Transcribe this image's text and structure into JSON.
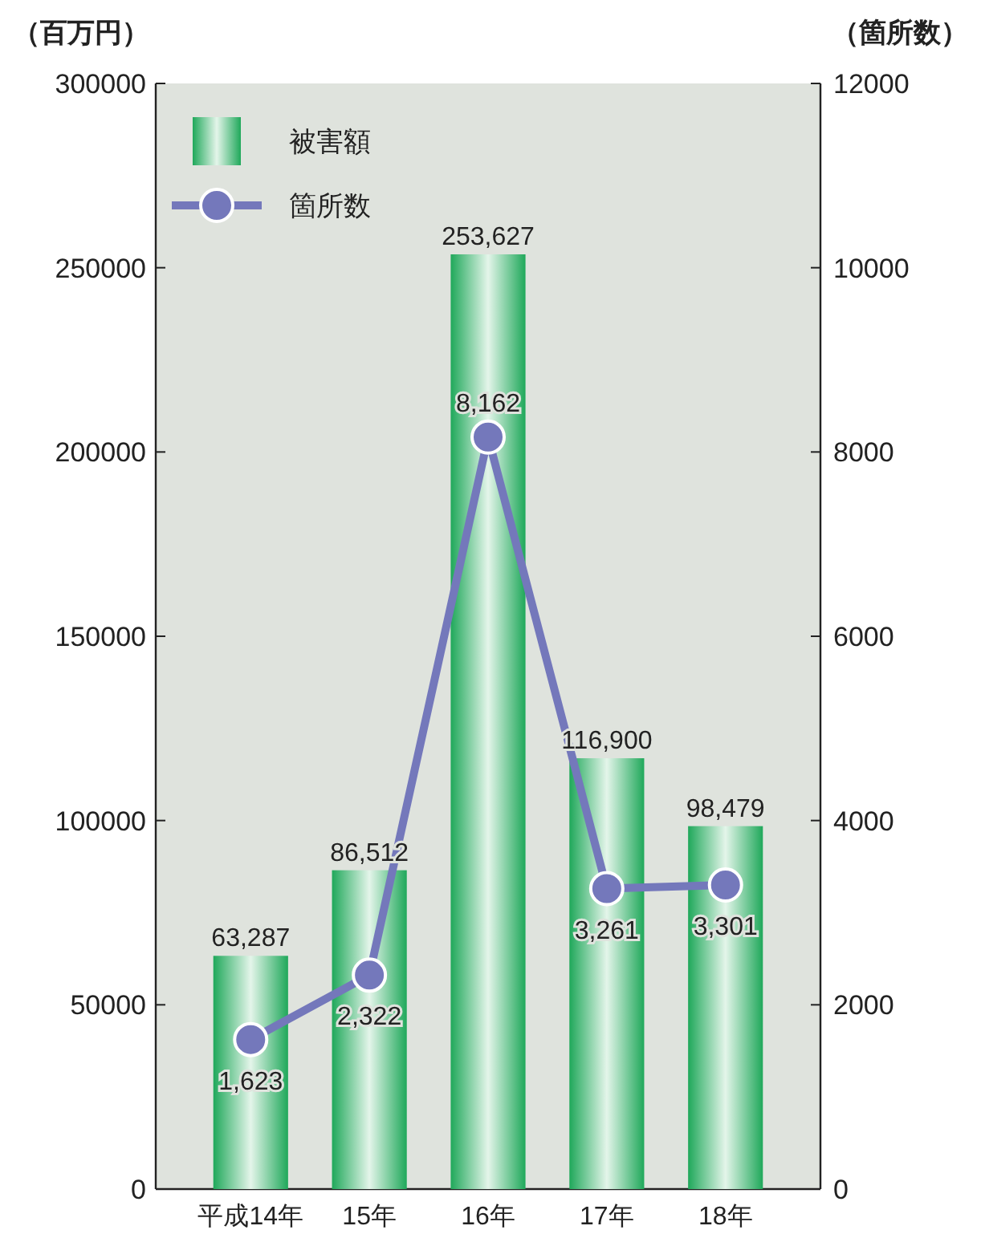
{
  "chart_data": {
    "type": "bar",
    "ylabel": "（百万円）",
    "y2label": "（箇所数）",
    "categories": [
      "平成14年",
      "15年",
      "16年",
      "17年",
      "18年"
    ],
    "series": [
      {
        "name": "被害額",
        "color": "#1fa85a",
        "values": [
          63287,
          86512,
          253627,
          116900,
          98479
        ],
        "value_labels": [
          "63,287",
          "86,512",
          "253,627",
          "116,900",
          "98,479"
        ]
      },
      {
        "name": "箇所数",
        "type": "line",
        "axis": "y2",
        "color": "#7478bb",
        "marker": "circle",
        "values": [
          1623,
          2322,
          8162,
          3261,
          3301
        ],
        "value_labels": [
          "1,623",
          "2,322",
          "8,162",
          "3,261",
          "3,301"
        ]
      }
    ],
    "ylim": [
      0,
      300000
    ],
    "yticks": [
      0,
      50000,
      100000,
      150000,
      200000,
      250000,
      300000
    ],
    "y2lim": [
      0,
      12000
    ],
    "y2ticks": [
      0,
      2000,
      4000,
      6000,
      8000,
      10000,
      12000
    ],
    "legend": "top left",
    "grid": false
  }
}
